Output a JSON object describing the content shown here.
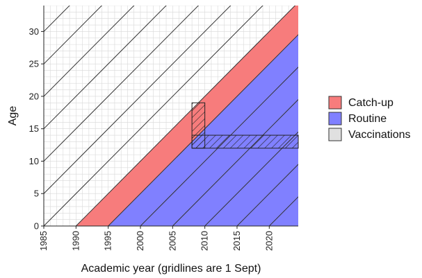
{
  "chart_data": {
    "type": "area",
    "xlabel": "Academic year (gridlines are 1 Sept)",
    "ylabel": "Age",
    "xlim": [
      1985,
      2024.5
    ],
    "ylim": [
      0,
      34
    ],
    "x_ticks": [
      1985,
      1990,
      1995,
      2000,
      2005,
      2010,
      2015,
      2020
    ],
    "y_ticks": [
      0,
      5,
      10,
      15,
      20,
      25,
      30
    ],
    "grid": true,
    "legend_placement": "right",
    "series": [
      {
        "name": "Catch-up",
        "color": "#f77c7c",
        "description_shape": "diagonal band",
        "lower_boundary": {
          "x": [
            1990,
            2024.5
          ],
          "age": [
            0,
            34.5
          ]
        },
        "upper_boundary": {
          "x": [
            1995,
            2024.5
          ],
          "age": [
            0,
            29.5
          ]
        }
      },
      {
        "name": "Routine",
        "color": "#8080ff",
        "lower_boundary": {
          "x": [
            1995,
            2024.5
          ],
          "age": [
            0,
            29.5
          ]
        }
      },
      {
        "name": "Vaccinations",
        "color": "#e0e0e0",
        "pattern": "hatched",
        "catch_up_column": {
          "x": [
            2008,
            2010
          ],
          "age": [
            12,
            19
          ]
        },
        "routine_row": {
          "x": [
            2008,
            2024.5
          ],
          "age": [
            12,
            14
          ]
        }
      }
    ],
    "cohort_lines": {
      "slope": 1,
      "x_intercepts": [
        1985,
        1990,
        1995,
        2000,
        2005,
        2010,
        2015,
        2020,
        1980,
        1975,
        1970,
        1965,
        1960,
        1955,
        1950
      ]
    }
  },
  "colors": {
    "catch_up": "#f77c7c",
    "routine": "#8080ff",
    "vaccinations": "#e0e0e0",
    "grid": "#d8d8d8",
    "cohort_line": "#333333"
  }
}
